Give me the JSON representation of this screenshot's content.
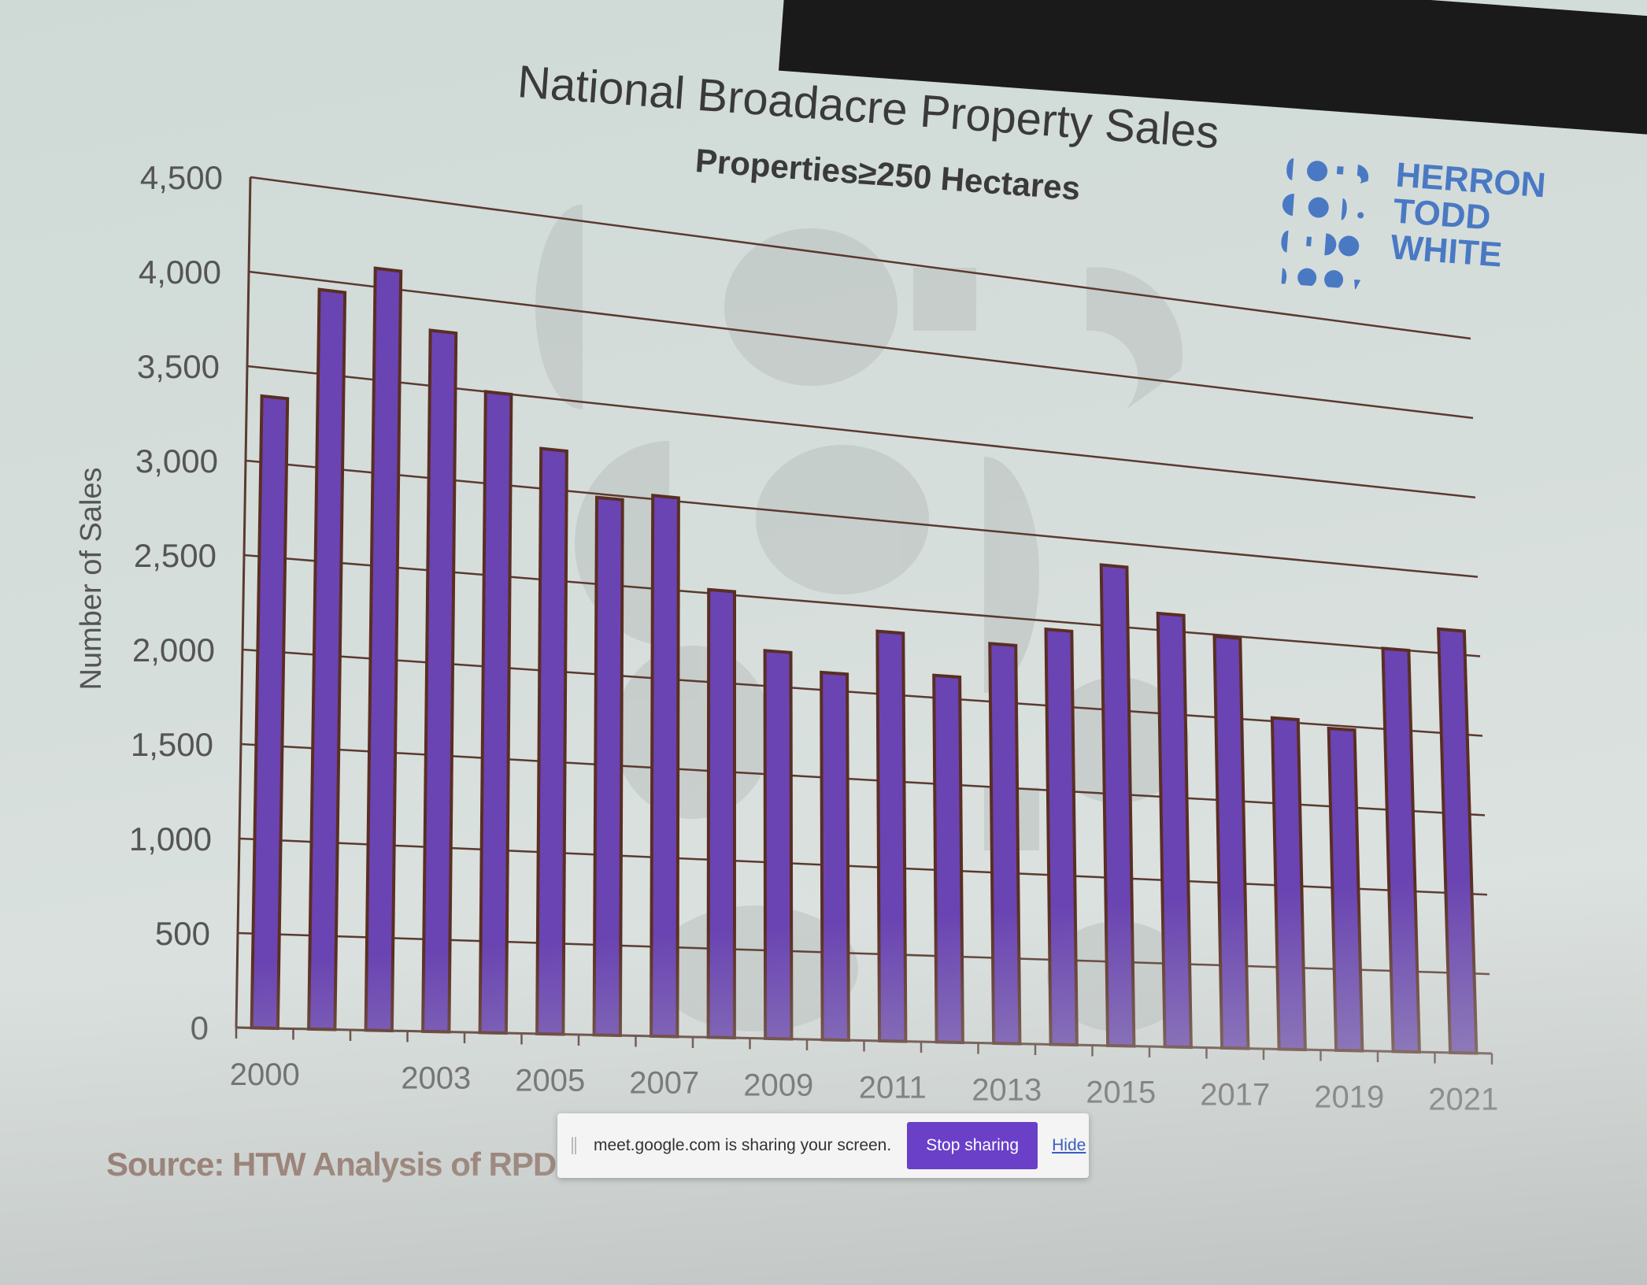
{
  "slide": {
    "title": "National Broadacre Property Sales",
    "subtitle": "Properties≥250 Hectares",
    "source": "Source: HTW Analysis of RPD"
  },
  "logo": {
    "lines": [
      "HERRON",
      "TODD",
      "WHITE"
    ],
    "color": "#4a79c4"
  },
  "share_bar": {
    "message": "meet.google.com is sharing your screen.",
    "stop_label": "Stop sharing",
    "hide_label": "Hide",
    "button_color": "#6a40c8"
  },
  "colors": {
    "bar_fill": "#6a44b2",
    "bar_outline": "#5a2e22",
    "grid": "#5a3a30",
    "text": "#555555"
  },
  "chart_data": {
    "type": "bar",
    "title": "National Broadacre Property Sales",
    "subtitle": "Properties≥250 Hectares",
    "ylabel": "Number of Sales",
    "xlabel": "",
    "ylim": [
      0,
      4500
    ],
    "yticks": [
      "0",
      "500",
      "1,000",
      "1,500",
      "2,000",
      "2,500",
      "3,000",
      "3,500",
      "4,000",
      "4,500"
    ],
    "categories": [
      "2000",
      "2001",
      "2002",
      "2003",
      "2004",
      "2005",
      "2006",
      "2007",
      "2008",
      "2009",
      "2010",
      "2011",
      "2012",
      "2013",
      "2014",
      "2015",
      "2016",
      "2017",
      "2018",
      "2019",
      "2020",
      "2021"
    ],
    "xtick_labels": [
      "2000",
      "",
      "",
      "2003",
      "",
      "2005",
      "",
      "2007",
      "",
      "2009",
      "",
      "2011",
      "",
      "2013",
      "",
      "2015",
      "",
      "2017",
      "",
      "2019",
      "",
      "2021"
    ],
    "values": [
      3350,
      3950,
      4100,
      3800,
      3500,
      3220,
      2980,
      3020,
      2520,
      2200,
      2100,
      2360,
      2130,
      2340,
      2450,
      2860,
      2600,
      2490,
      2020,
      1980,
      2500,
      2650
    ],
    "grid": true,
    "legend": "none"
  }
}
